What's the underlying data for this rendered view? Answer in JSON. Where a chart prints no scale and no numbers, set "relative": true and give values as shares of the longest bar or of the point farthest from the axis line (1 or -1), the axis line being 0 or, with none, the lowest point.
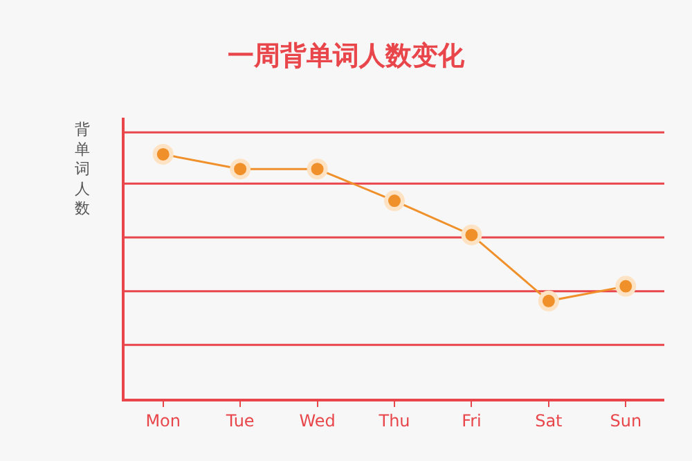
{
  "chart_data": {
    "type": "line",
    "title": "一周背单词人数变化",
    "ylabel": "背单词人数",
    "categories": [
      "Mon",
      "Tue",
      "Wed",
      "Thu",
      "Fri",
      "Sat",
      "Sun"
    ],
    "relative": true,
    "marker": "circle",
    "line_style": "solid",
    "ref_lines": [
      {
        "axis": "y",
        "value": 0.22,
        "color": "#e8464a"
      },
      {
        "axis": "y",
        "value": 0.44,
        "color": "#e8464a"
      },
      {
        "axis": "y",
        "value": 0.66,
        "color": "#e8464a"
      },
      {
        "axis": "y",
        "value": 0.88,
        "color": "#e8464a"
      },
      {
        "axis": "y",
        "value": 1.09,
        "color": "#e8464a"
      }
    ],
    "series": [
      {
        "color": "#f0902a",
        "values": [
          1,
          0.94,
          0.94,
          0.81,
          0.67,
          0.4,
          0.46
        ]
      }
    ]
  }
}
